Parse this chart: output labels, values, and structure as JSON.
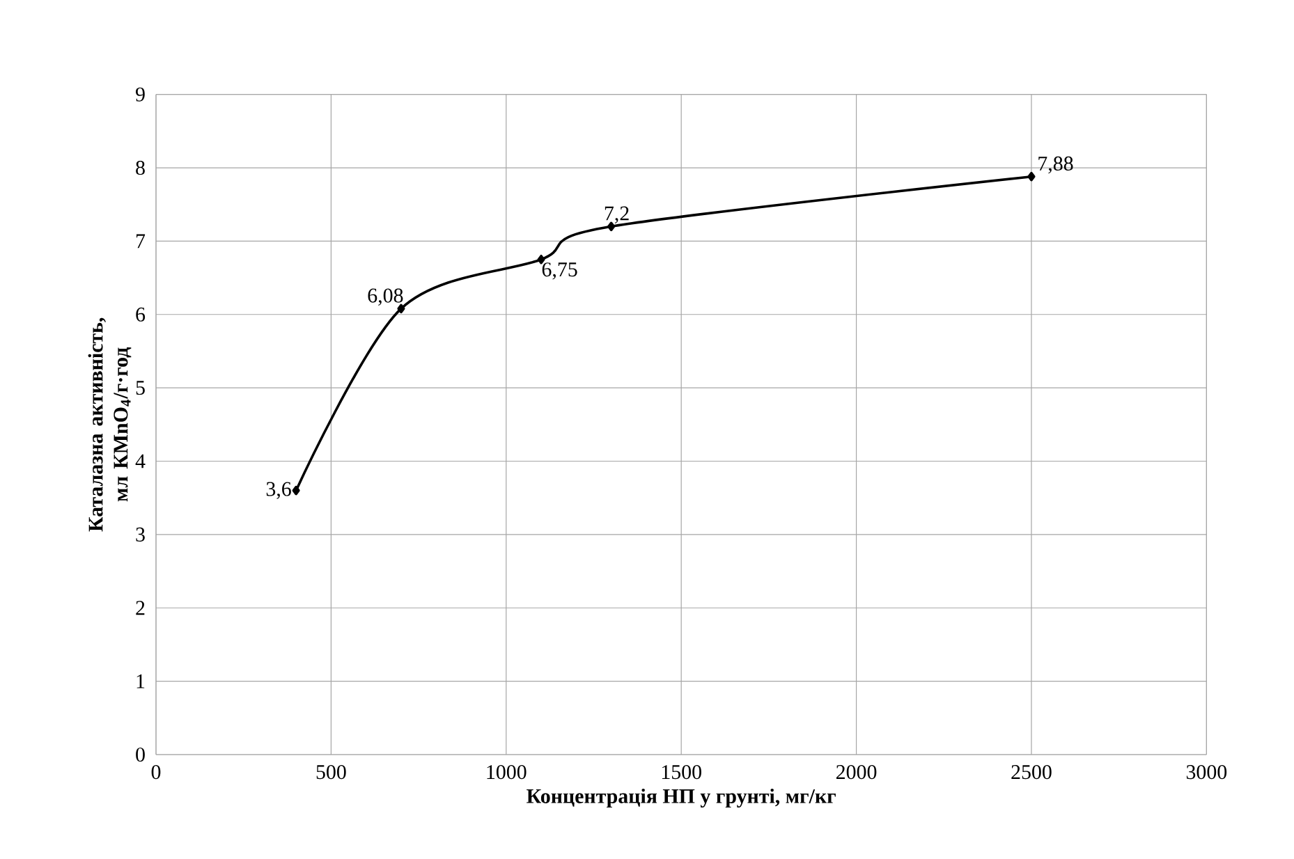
{
  "chart_data": {
    "type": "line",
    "xlabel": "Концентрація НП у грунті, мг/кг",
    "ylabel": "Каталазна активність, мл КМnО$_{4}$/г·год",
    "x": [
      400,
      700,
      1100,
      1300,
      2500
    ],
    "values": [
      3.6,
      6.08,
      6.75,
      7.2,
      7.88
    ],
    "value_labels": [
      "3,6",
      "6,08",
      "6,75",
      "7,2",
      "7,88"
    ],
    "color": "#000000",
    "marker": "diamond",
    "line_style": "solid",
    "grid": true,
    "xlim": [
      0,
      3000
    ],
    "xticks": [
      0,
      500,
      1000,
      1500,
      2000,
      2500,
      3000
    ],
    "ylim": [
      0,
      9
    ],
    "yticks": [
      0,
      1,
      2,
      3,
      4,
      5,
      6,
      7,
      8,
      9
    ]
  }
}
